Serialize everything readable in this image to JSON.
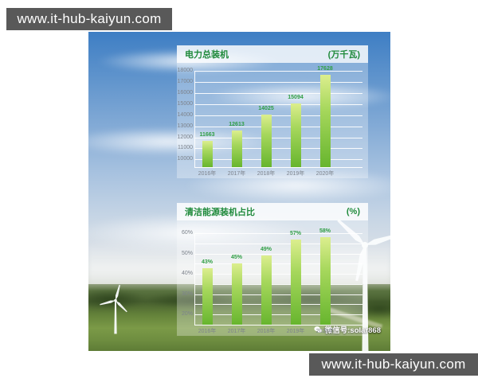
{
  "header": {
    "site_url": "www.it-hub-kaiyun.com"
  },
  "footer": {
    "site_url": "www.it-hub-kaiyun.com"
  },
  "watermark": {
    "icon": "wechat-icon",
    "text": "微信号:solar868"
  },
  "colors": {
    "bar_gray": "#595959",
    "title_green": "#1f8a3b",
    "value_green": "#2f9e44",
    "tick_gray": "#7d838c",
    "bar_top": "#dcee8e",
    "bar_mid": "#a6d75c",
    "bar_bottom": "#67b52e"
  },
  "chart_data": [
    {
      "type": "bar",
      "title": "电力总装机",
      "unit": "(万千瓦)",
      "categories": [
        "2016年",
        "2017年",
        "2018年",
        "2019年",
        "2020年"
      ],
      "values": [
        11663,
        12613,
        14025,
        15094,
        17628
      ],
      "value_suffix": "",
      "yticks": [
        10000,
        11000,
        12000,
        13000,
        14000,
        15000,
        16000,
        17000,
        18000
      ],
      "grid": [
        10000,
        11000,
        12000,
        13000,
        14000,
        15000,
        16000,
        17000,
        18000
      ],
      "ytick_suffix": "",
      "ylim": [
        9300,
        18300
      ],
      "legend": "none",
      "gridlines": true
    },
    {
      "type": "bar",
      "title": "清洁能源装机占比",
      "unit": "(%)",
      "categories": [
        "2016年",
        "2017年",
        "2018年",
        "2019年",
        "2020年"
      ],
      "values": [
        43,
        45,
        49,
        57,
        58
      ],
      "value_suffix": "%",
      "yticks": [
        20,
        30,
        40,
        50,
        60
      ],
      "grid": [
        20,
        25,
        30,
        35,
        40,
        45,
        50,
        55,
        60
      ],
      "ytick_suffix": "%",
      "ylim": [
        15,
        64
      ],
      "legend": "none",
      "gridlines": true
    }
  ]
}
